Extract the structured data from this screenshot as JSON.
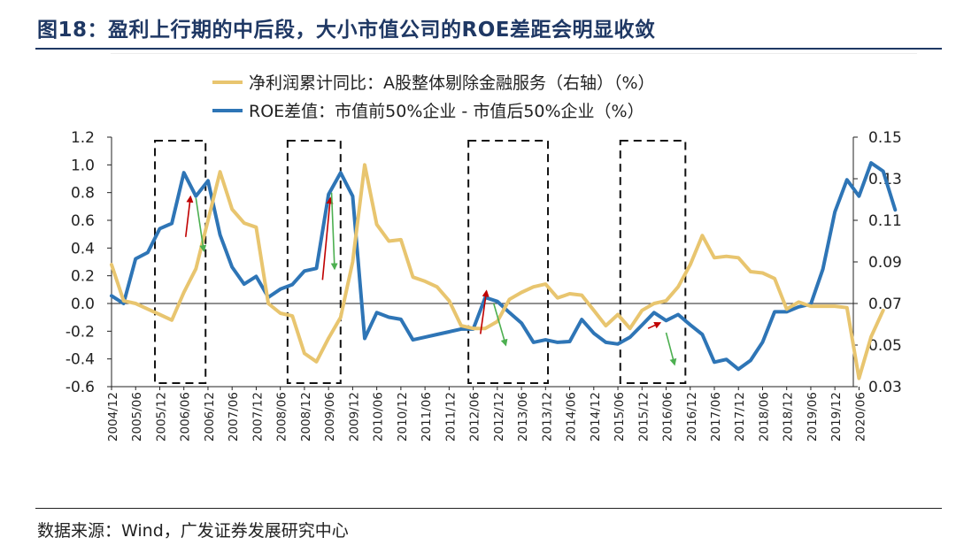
{
  "title": "图18：盈利上行期的中后段，大小市值公司的ROE差距会明显收敛",
  "source": "数据来源：Wind，广发证券发展研究中心",
  "chart_data": {
    "type": "line",
    "legend": [
      {
        "name": "净利润累计同比：A股整体剔除金融服务（右轴）（%）",
        "color": "#e8c56f"
      },
      {
        "name": "ROE差值：市值前50%企业 - 市值后50%企业（%）",
        "color": "#2e75b6"
      }
    ],
    "x_ticks": [
      "2004/12",
      "2005/06",
      "2005/12",
      "2006/06",
      "2006/12",
      "2007/06",
      "2007/12",
      "2008/06",
      "2008/12",
      "2009/06",
      "2009/12",
      "2010/06",
      "2010/12",
      "2011/06",
      "2011/12",
      "2012/06",
      "2012/12",
      "2013/06",
      "2013/12",
      "2014/06",
      "2014/12",
      "2015/06",
      "2015/12",
      "2016/06",
      "2016/12",
      "2017/06",
      "2017/12",
      "2018/06",
      "2018/12",
      "2019/06",
      "2019/12",
      "2020/06"
    ],
    "y_left": {
      "min": -0.6,
      "max": 1.2,
      "step": 0.2,
      "ticks": [
        "1.2",
        "1.0",
        "0.8",
        "0.6",
        "0.4",
        "0.2",
        "0.0",
        "-0.2",
        "-0.4",
        "-0.6"
      ]
    },
    "y_right": {
      "min": 0.03,
      "max": 0.15,
      "step": 0.02,
      "ticks": [
        "0.15",
        "0.13",
        "0.11",
        "0.09",
        "0.07",
        "0.05",
        "0.03"
      ]
    },
    "series": [
      {
        "name": "ROE差值：市值前50%企业 - 市值后50%企业（%）",
        "axis": "right",
        "color": "#2e75b6",
        "values": [
          0.0737,
          0.07,
          0.0915,
          0.0945,
          0.106,
          0.1085,
          0.1329,
          0.1216,
          0.129,
          0.103,
          0.0875,
          0.0793,
          0.083,
          0.073,
          0.0769,
          0.0791,
          0.0856,
          0.0869,
          0.1225,
          0.1329,
          0.1216,
          0.0532,
          0.0656,
          0.0634,
          0.0624,
          0.0525,
          0.0538,
          0.0551,
          0.0564,
          0.0577,
          0.0577,
          0.0729,
          0.071,
          0.0656,
          0.0606,
          0.0513,
          0.0525,
          0.0513,
          0.0517,
          0.0623,
          0.0557,
          0.0513,
          0.0505,
          0.0538,
          0.0596,
          0.0656,
          0.0618,
          0.0647,
          0.0597,
          0.0551,
          0.0418,
          0.0431,
          0.0384,
          0.0426,
          0.0514,
          0.066,
          0.066,
          0.0684,
          0.0697,
          0.0865,
          0.1141,
          0.1295,
          0.1216,
          0.1376,
          0.1336,
          0.115
        ]
      },
      {
        "name": "净利润累计同比：A股整体剔除金融服务（右轴）（%）",
        "axis": "left",
        "color": "#e8c56f",
        "values": [
          0.28,
          0.02,
          0.0,
          -0.04,
          -0.08,
          -0.12,
          0.08,
          0.25,
          0.6,
          0.95,
          0.68,
          0.58,
          0.55,
          0.0,
          -0.07,
          -0.09,
          -0.36,
          -0.42,
          -0.25,
          -0.1,
          0.3,
          1.0,
          0.57,
          0.45,
          0.46,
          0.19,
          0.16,
          0.12,
          0.02,
          -0.16,
          -0.18,
          -0.18,
          -0.13,
          0.03,
          0.08,
          0.12,
          0.14,
          0.04,
          0.07,
          0.06,
          -0.05,
          -0.16,
          -0.08,
          -0.18,
          -0.05,
          0.0,
          0.02,
          0.12,
          0.28,
          0.49,
          0.33,
          0.34,
          0.33,
          0.23,
          0.22,
          0.18,
          -0.04,
          0.01,
          -0.02,
          -0.02,
          -0.02,
          -0.03,
          -0.54,
          -0.24,
          -0.05
        ]
      }
    ],
    "annotations": {
      "boxes": [
        [
          1.8,
          3.9
        ],
        [
          7.3,
          9.5
        ],
        [
          14.8,
          18.1
        ],
        [
          21.1,
          23.8
        ]
      ],
      "arrows": [
        {
          "color": "#c00000",
          "from": [
            6.15,
            0.48
          ],
          "to": [
            6.55,
            0.77
          ]
        },
        {
          "color": "#4caf50",
          "from": [
            7.0,
            0.76
          ],
          "to": [
            7.65,
            0.38
          ]
        },
        {
          "color": "#c00000",
          "from": [
            17.5,
            0.17
          ],
          "to": [
            18.15,
            0.76
          ]
        },
        {
          "color": "#4caf50",
          "from": [
            18.25,
            0.8
          ],
          "to": [
            18.5,
            0.25
          ]
        },
        {
          "color": "#c00000",
          "from": [
            30.6,
            -0.22
          ],
          "to": [
            31.1,
            0.09
          ]
        },
        {
          "color": "#4caf50",
          "from": [
            31.7,
            0.0
          ],
          "to": [
            32.7,
            -0.3
          ]
        },
        {
          "color": "#c00000",
          "from": [
            44.5,
            -0.18
          ],
          "to": [
            45.5,
            -0.14
          ]
        },
        {
          "color": "#4caf50",
          "from": [
            46.0,
            -0.21
          ],
          "to": [
            46.7,
            -0.44
          ]
        }
      ]
    }
  }
}
